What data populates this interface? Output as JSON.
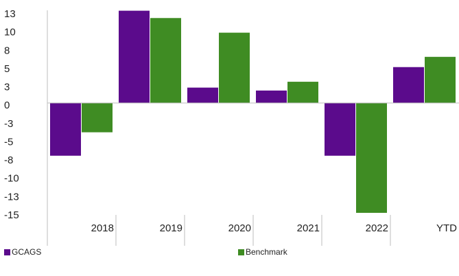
{
  "chart_data": {
    "type": "bar",
    "categories": [
      "2018",
      "2019",
      "2020",
      "2021",
      "2022",
      "YTD"
    ],
    "series": [
      {
        "name": "GCAGS",
        "color": "#5b0b8c",
        "values": [
          -7.2,
          12.6,
          2.1,
          1.7,
          -7.2,
          4.9
        ]
      },
      {
        "name": "Benchmark",
        "color": "#3f8c23",
        "values": [
          -4.0,
          11.6,
          9.6,
          2.9,
          -15.0,
          6.3
        ]
      }
    ],
    "yticks": [
      "13",
      "10",
      "8",
      "5",
      "3",
      "0",
      "-3",
      "-5",
      "-8",
      "-10",
      "-13",
      "-15"
    ],
    "ylim": [
      -15,
      13
    ],
    "legend_position": "bottom",
    "grid": false
  }
}
